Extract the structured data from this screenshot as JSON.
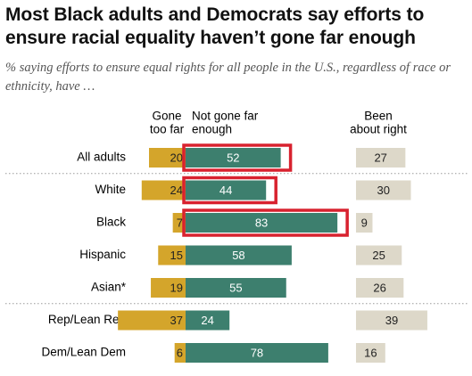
{
  "title": "Most Black adults and Democrats say efforts to ensure racial equality haven’t gone far enough",
  "subtitle": "% saying efforts to ensure equal rights for all people in the U.S., regardless of race or ethnicity, have …",
  "colors": {
    "gone_too_far": "#d4a52b",
    "not_gone_far_enough": "#3d7f6e",
    "been_about_right": "#ddd8c9",
    "highlight_box": "#d8222f"
  },
  "chart_data": {
    "type": "bar",
    "title": "Most Black adults and Democrats say efforts to ensure racial equality haven’t gone far enough",
    "subtitle": "% saying efforts to ensure equal rights for all people in the U.S., regardless of race or ethnicity, have …",
    "categories": [
      "All adults",
      "White",
      "Black",
      "Hispanic",
      "Asian*",
      "Rep/Lean Rep",
      "Dem/Lean Dem"
    ],
    "series": [
      {
        "name": "Gone too far",
        "header": [
          "Gone",
          "too far"
        ],
        "values": [
          20,
          24,
          7,
          15,
          19,
          37,
          6
        ]
      },
      {
        "name": "Not gone far enough",
        "header": [
          "Not gone far",
          "enough"
        ],
        "values": [
          52,
          44,
          83,
          58,
          55,
          24,
          78
        ]
      },
      {
        "name": "Been about right",
        "header": [
          "Been",
          "about right"
        ],
        "values": [
          27,
          30,
          9,
          25,
          26,
          39,
          16
        ]
      }
    ],
    "highlighted": [
      "All adults",
      "White",
      "Black"
    ],
    "separators_after": [
      "All adults",
      "Asian*"
    ]
  }
}
